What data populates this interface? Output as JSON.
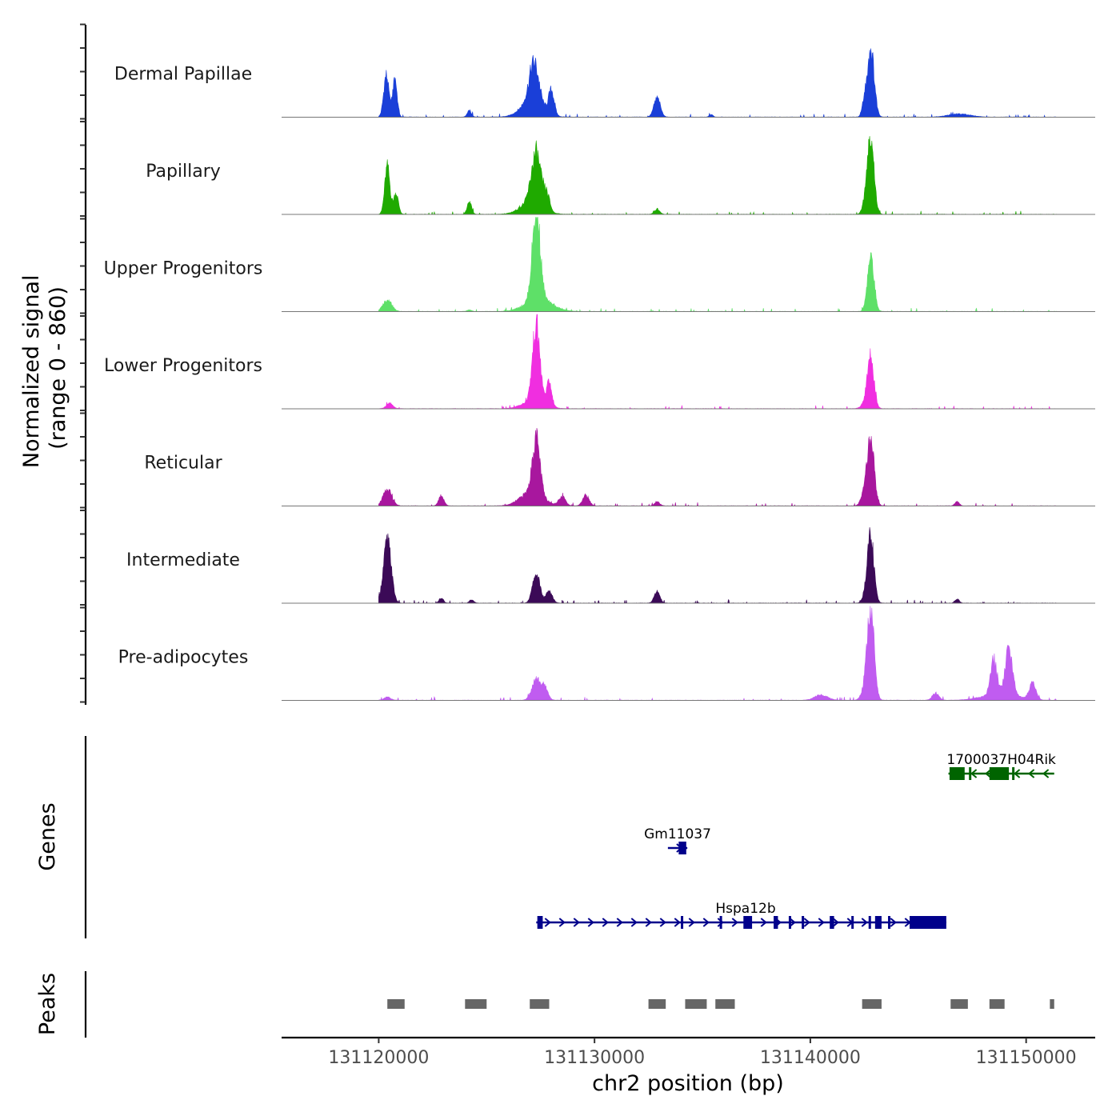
{
  "chart_data": {
    "type": "area",
    "title": "",
    "ylabel": "Normalized signal\n(range 0 - 860)",
    "ylabel_lines": [
      "Normalized signal",
      "(range 0 - 860)"
    ],
    "ylim": [
      0,
      860
    ],
    "xlabel": "chr2 position (bp)",
    "xlim": [
      131115500,
      131153200
    ],
    "x_ticks": [
      131120000,
      131130000,
      131140000,
      131150000
    ],
    "x_tick_labels": [
      "131120000",
      "131130000",
      "131140000",
      "131150000"
    ],
    "signal_start": 131120000,
    "signal_end": 131151400,
    "tracks": [
      {
        "name": "Dermal Papillae",
        "color": "#1a3fd8",
        "peaks": [
          [
            131120350,
            400,
            120
          ],
          [
            131120750,
            370,
            100
          ],
          [
            131124200,
            60,
            100
          ],
          [
            131127200,
            380,
            220
          ],
          [
            131127100,
            150,
            500
          ],
          [
            131128000,
            230,
            130
          ],
          [
            131132900,
            180,
            150
          ],
          [
            131135400,
            25,
            80
          ],
          [
            131142800,
            650,
            160
          ],
          [
            131142500,
            110,
            110
          ],
          [
            131146900,
            30,
            500
          ]
        ]
      },
      {
        "name": "Papillary",
        "color": "#1faa00",
        "peaks": [
          [
            131120400,
            450,
            120
          ],
          [
            131120800,
            200,
            110
          ],
          [
            131124200,
            120,
            100
          ],
          [
            131127300,
            470,
            220
          ],
          [
            131127100,
            120,
            500
          ],
          [
            131127800,
            140,
            130
          ],
          [
            131132900,
            50,
            120
          ],
          [
            131142800,
            760,
            150
          ],
          [
            131142500,
            80,
            110
          ]
        ]
      },
      {
        "name": "Upper Progenitors",
        "color": "#5ee068",
        "peaks": [
          [
            131120400,
            110,
            200
          ],
          [
            131127300,
            860,
            180
          ],
          [
            131127400,
            120,
            600
          ],
          [
            131142800,
            520,
            150
          ],
          [
            131124200,
            15,
            100
          ]
        ]
      },
      {
        "name": "Lower Progenitors",
        "color": "#f02ee0",
        "peaks": [
          [
            131120500,
            50,
            150
          ],
          [
            131127300,
            730,
            170
          ],
          [
            131127900,
            220,
            120
          ],
          [
            131127200,
            80,
            500
          ],
          [
            131142800,
            460,
            150
          ],
          [
            131142600,
            60,
            200
          ]
        ]
      },
      {
        "name": "Reticular",
        "color": "#a8179e",
        "peaks": [
          [
            131120400,
            150,
            200
          ],
          [
            131122900,
            100,
            120
          ],
          [
            131127300,
            520,
            170
          ],
          [
            131127100,
            140,
            500
          ],
          [
            131128500,
            90,
            150
          ],
          [
            131129600,
            100,
            150
          ],
          [
            131132900,
            40,
            120
          ],
          [
            131142800,
            620,
            160
          ],
          [
            131142500,
            110,
            150
          ],
          [
            131146800,
            40,
            100
          ]
        ]
      },
      {
        "name": "Intermediate",
        "color": "#3b0a57",
        "peaks": [
          [
            131120400,
            590,
            180
          ],
          [
            131122900,
            50,
            100
          ],
          [
            131124300,
            30,
            100
          ],
          [
            131127300,
            280,
            170
          ],
          [
            131127900,
            110,
            150
          ],
          [
            131132900,
            110,
            130
          ],
          [
            131142800,
            620,
            150
          ],
          [
            131142600,
            80,
            150
          ],
          [
            131146800,
            40,
            100
          ]
        ]
      },
      {
        "name": "Pre-adipocytes",
        "color": "#c05cf0",
        "peaks": [
          [
            131120400,
            30,
            150
          ],
          [
            131127300,
            200,
            200
          ],
          [
            131127700,
            110,
            150
          ],
          [
            131140500,
            50,
            300
          ],
          [
            131142800,
            860,
            160
          ],
          [
            131142500,
            90,
            150
          ],
          [
            131145800,
            70,
            150
          ],
          [
            131148500,
            330,
            150
          ],
          [
            131149200,
            420,
            170
          ],
          [
            131148800,
            60,
            800
          ],
          [
            131150300,
            150,
            150
          ]
        ]
      }
    ],
    "genes": [
      {
        "name": "1700037H04Rik",
        "color": "#006400",
        "strand": "-",
        "start": 131146400,
        "end": 131151300,
        "exons": [
          [
            131146450,
            131147150
          ],
          [
            131147350,
            131147450
          ],
          [
            131148300,
            131149200
          ],
          [
            131149350,
            131149450
          ]
        ]
      },
      {
        "name": "Gm11037",
        "color": "#00008b",
        "strand": "+",
        "start": 131133400,
        "end": 131134300,
        "exons": [
          [
            131133900,
            131134250
          ]
        ]
      },
      {
        "name": "Hspa12b",
        "color": "#00008b",
        "strand": "+",
        "start": 131127300,
        "end": 131146300,
        "exons": [
          [
            131127350,
            131127600
          ],
          [
            131134000,
            131134100
          ],
          [
            131135800,
            131135900
          ],
          [
            131136900,
            131137300
          ],
          [
            131138300,
            131138500
          ],
          [
            131139000,
            131139100
          ],
          [
            131139600,
            131139700
          ],
          [
            131140900,
            131141100
          ],
          [
            131141900,
            131142000
          ],
          [
            131142700,
            131142800
          ],
          [
            131143000,
            131143300
          ],
          [
            131143600,
            131143700
          ],
          [
            131144600,
            131146300
          ]
        ]
      }
    ],
    "peaks_track": {
      "label": "Peaks",
      "color": "#666666",
      "regions": [
        [
          131120400,
          131121200
        ],
        [
          131124000,
          131125000
        ],
        [
          131127000,
          131127900
        ],
        [
          131132500,
          131133300
        ],
        [
          131134200,
          131135200
        ],
        [
          131135600,
          131136500
        ],
        [
          131142400,
          131143300
        ],
        [
          131146500,
          131147300
        ],
        [
          131148300,
          131149000
        ],
        [
          131151100,
          131151300
        ]
      ]
    },
    "genes_track_label": "Genes"
  }
}
